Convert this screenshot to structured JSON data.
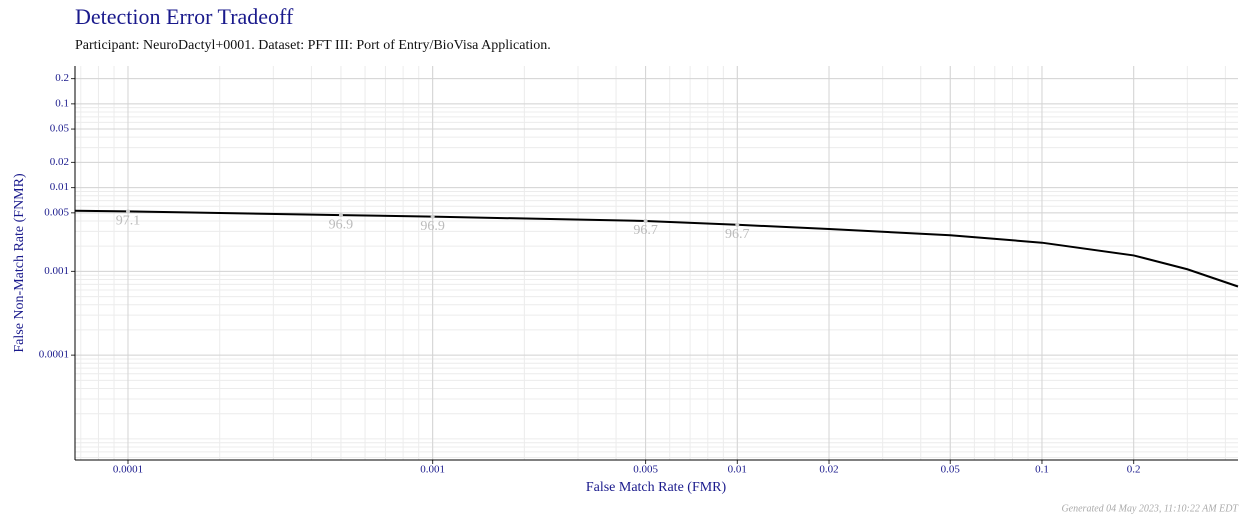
{
  "chart_data": {
    "type": "line",
    "title": "Detection Error Tradeoff",
    "subtitle": "Participant: NeuroDactyl+0001. Dataset: PFT III: Port of Entry/BioVisa Application.",
    "xlabel": "False Match Rate (FMR)",
    "ylabel": "False Non-Match Rate (FNMR)",
    "footer": "Generated 04 May 2023, 11:10:22 AM EDT",
    "log_x": true,
    "log_y": true,
    "grid": true,
    "color": "#000000",
    "xlim": [
      6.7e-05,
      0.44
    ],
    "ylim": [
      5.6e-06,
      0.283
    ],
    "xticks": [
      0.0001,
      0.001,
      0.005,
      0.01,
      0.02,
      0.05,
      0.1,
      0.2
    ],
    "yticks": [
      0.0001,
      0.001,
      0.005,
      0.01,
      0.02,
      0.05,
      0.1,
      0.2
    ],
    "x": [
      6.7e-05,
      0.0001,
      0.0005,
      0.001,
      0.005,
      0.01,
      0.02,
      0.05,
      0.1,
      0.2,
      0.3,
      0.44
    ],
    "values": [
      0.0053,
      0.0052,
      0.0047,
      0.0045,
      0.004,
      0.0036,
      0.0032,
      0.0027,
      0.0022,
      0.00155,
      0.00106,
      0.00066
    ],
    "annotations": [
      {
        "x": 0.0001,
        "y": 0.0052,
        "text": "97.1"
      },
      {
        "x": 0.0005,
        "y": 0.0047,
        "text": "96.9"
      },
      {
        "x": 0.001,
        "y": 0.0045,
        "text": "96.9"
      },
      {
        "x": 0.005,
        "y": 0.004,
        "text": "96.7"
      },
      {
        "x": 0.01,
        "y": 0.0036,
        "text": "96.7"
      }
    ]
  }
}
